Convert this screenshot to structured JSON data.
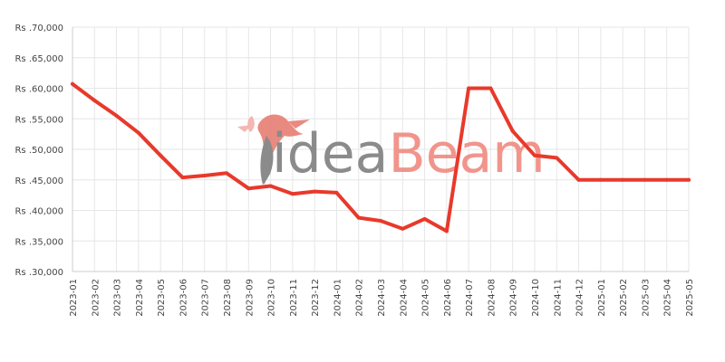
{
  "chart_data": {
    "type": "line",
    "title": "",
    "xlabel": "",
    "ylabel": "",
    "y_prefix": "Rs .",
    "ylim": [
      30000,
      70000
    ],
    "y_ticks": [
      30000,
      35000,
      40000,
      45000,
      50000,
      55000,
      60000,
      65000,
      70000
    ],
    "grid": true,
    "x": [
      "2023-01",
      "2023-02",
      "2023-03",
      "2023-04",
      "2023-05",
      "2023-06",
      "2023-07",
      "2023-08",
      "2023-09",
      "2023-10",
      "2023-11",
      "2023-12",
      "2024-01",
      "2024-02",
      "2024-03",
      "2024-04",
      "2024-05",
      "2024-06",
      "2024-07",
      "2024-08",
      "2024-09",
      "2024-10",
      "2024-11",
      "2024-12",
      "2025-01",
      "2025-02",
      "2025-03",
      "2025-04",
      "2025-05"
    ],
    "series": [
      {
        "color": "#e8392b",
        "values": [
          60700,
          58000,
          55500,
          52700,
          49000,
          45400,
          45700,
          46100,
          43600,
          44000,
          42700,
          43100,
          42900,
          38800,
          38300,
          37000,
          38600,
          36600,
          60000,
          60000,
          53000,
          49000,
          48600,
          45000,
          45000,
          45000,
          45000,
          45000,
          45000
        ]
      }
    ]
  },
  "watermark": {
    "part1": "idea",
    "part2": "Beam",
    "color1": "#7f7f7f",
    "color2": "#f08a80"
  }
}
